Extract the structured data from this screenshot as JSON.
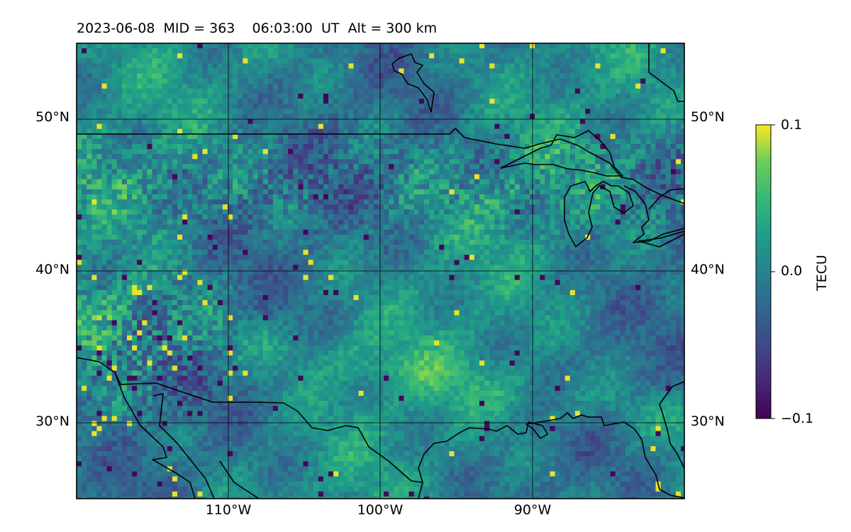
{
  "figure": {
    "title": "2023-06-08  MID = 363    06:03:00  UT  Alt = 300 km"
  },
  "map": {
    "projection": "PlateCarree",
    "lon_range": [
      -120,
      -80
    ],
    "lat_range": [
      25,
      55
    ],
    "lat_gridlines": [
      30,
      40,
      50
    ],
    "lon_gridlines": [
      -110,
      -100,
      -90
    ],
    "lat_tick_labels": [
      "30°N",
      "40°N",
      "50°N"
    ],
    "lon_tick_labels": [
      "110°W",
      "100°W",
      "90°W"
    ],
    "grid": true,
    "coastlines": true,
    "borders": true,
    "field": "TEC perturbation (detrended), noisy speckle pattern with enhanced values over the southwest US and a diagonal positive band across Texas and the Gulf coast"
  },
  "colorbar": {
    "label": "TECU",
    "colormap": "viridis",
    "vmin": -0.1,
    "vmax": 0.1,
    "ticks": [
      "0.1",
      "0.0",
      "−0.1"
    ],
    "orientation": "vertical"
  }
}
